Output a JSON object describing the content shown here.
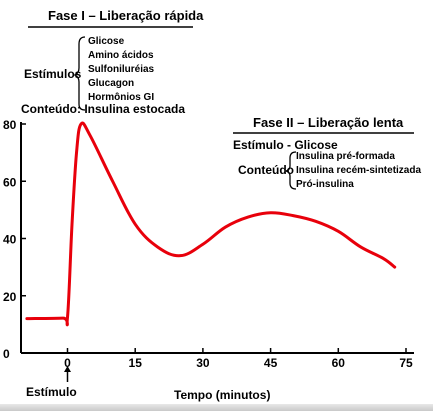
{
  "chart_data": {
    "type": "line",
    "xlabel": "Tempo (minutos)",
    "ylabel": "",
    "x_ticks": [
      0,
      15,
      30,
      45,
      60,
      75
    ],
    "y_ticks": [
      0,
      20,
      40,
      60,
      80
    ],
    "xlim": [
      -10,
      75
    ],
    "ylim": [
      0,
      80
    ],
    "grid": false,
    "series_color": "#e8000b",
    "series": [
      {
        "x": [
          -9,
          -1,
          0,
          1,
          2,
          3,
          5,
          10,
          15,
          20,
          25,
          30,
          35,
          40,
          45,
          50,
          55,
          60,
          65,
          70,
          72.5
        ],
        "y": [
          12,
          12.2,
          12.5,
          45,
          70,
          80,
          76,
          60,
          45,
          37,
          34,
          38,
          44,
          47.5,
          49,
          48,
          46,
          42.5,
          37,
          33,
          30
        ]
      }
    ],
    "stimulus_marker": {
      "x": 0,
      "label": "Estímulo"
    }
  },
  "phase1": {
    "title": "Fase I – Liberação rápida",
    "stimuli_label": "Estímulos",
    "stimuli": [
      "Glicose",
      "Amino ácidos",
      "Sulfoniluréias",
      "Glucagon",
      "Hormônios GI"
    ],
    "content_text": "Conteúdo: Insulina estocada"
  },
  "phase2": {
    "title": "Fase II – Liberação lenta",
    "stimulus_text": "Estímulo - Glicose",
    "content_label": "Conteúdo",
    "contents": [
      "Insulina pré-formada",
      "Insulina recém-sintetizada",
      "Pró-insulina"
    ]
  }
}
